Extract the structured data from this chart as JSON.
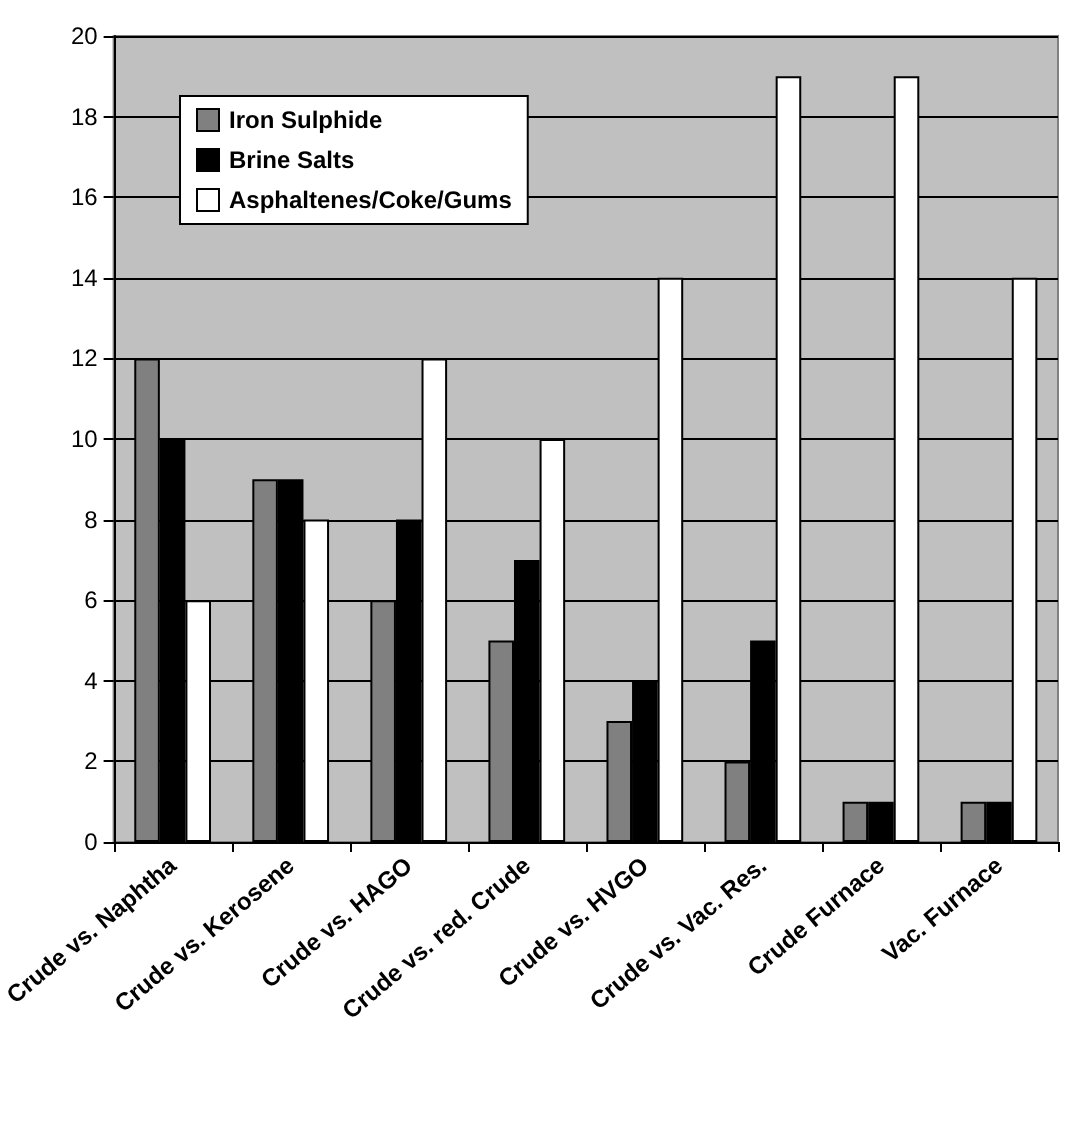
{
  "chart_data": {
    "type": "bar",
    "categories": [
      "Crude vs. Naphtha",
      "Crude vs. Kerosene",
      "Crude vs. HAGO",
      "Crude vs. red. Crude",
      "Crude vs. HVGO",
      "Crude vs. Vac. Res.",
      "Crude Furnace",
      "Vac. Furnace"
    ],
    "series": [
      {
        "name": "Iron Sulphide",
        "color": "#808080",
        "values": [
          12,
          9,
          6,
          5,
          3,
          2,
          1,
          1
        ]
      },
      {
        "name": "Brine Salts",
        "color": "#000000",
        "values": [
          10,
          9,
          8,
          7,
          4,
          5,
          1,
          1
        ]
      },
      {
        "name": "Asphaltenes/Coke/Gums",
        "color": "#ffffff",
        "values": [
          6,
          8,
          12,
          10,
          14,
          19,
          19,
          14
        ]
      }
    ],
    "ylim": [
      0,
      20
    ],
    "yticks": [
      0,
      2,
      4,
      6,
      8,
      10,
      12,
      14,
      16,
      18,
      20
    ],
    "grid": "y",
    "legend": "top left"
  }
}
